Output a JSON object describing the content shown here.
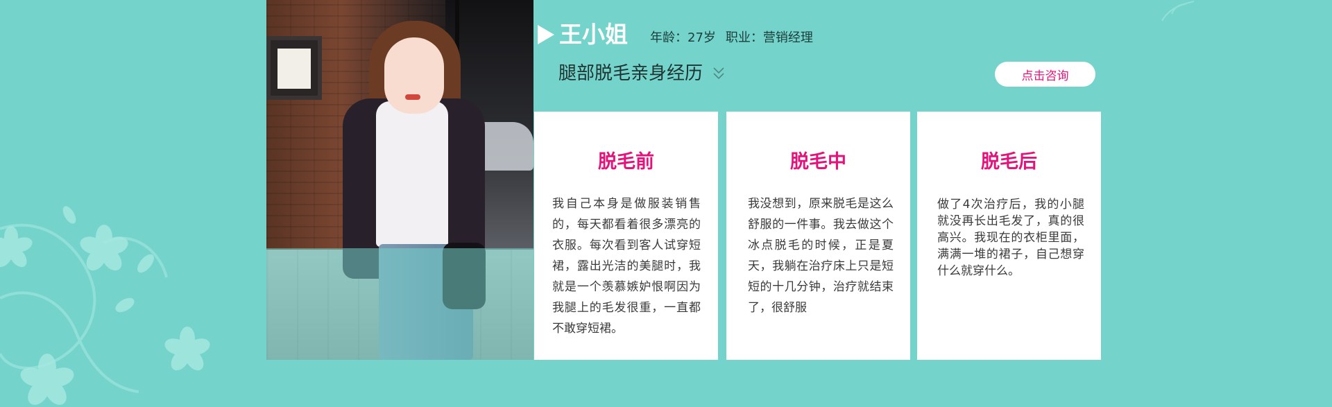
{
  "profile": {
    "name": "王小姐",
    "meta_age": "年龄：27岁",
    "meta_job": "职业：营销经理"
  },
  "section": {
    "heading": "腿部脱毛亲身经历"
  },
  "cta": {
    "consult_label": "点击咨询"
  },
  "stages": [
    {
      "title": "脱毛前",
      "text": "我自己本身是做服装销售的，每天都看着很多漂亮的衣服。每次看到客人试穿短裙，露出光洁的美腿时，我就是一个羡慕嫉妒恨啊因为我腿上的毛发很重，一直都不敢穿短裙。"
    },
    {
      "title": "脱毛中",
      "text": "我没想到，原来脱毛是这么舒服的一件事。我去做这个冰点脱毛的时候，正是夏天，我躺在治疗床上只是短短的十几分钟，治疗就结束了，很舒服"
    },
    {
      "title": "脱毛后",
      "text": "做了4次治疗后，我的小腿就没再长出毛发了，真的很高兴。我现在的衣柜里面，满满一堆的裙子，自己想穿什么就穿什么。"
    }
  ],
  "colors": {
    "background": "#74d4cc",
    "accent_pink": "#e4137c",
    "card_bg": "#ffffff"
  },
  "icons": {
    "header_marker": "triangle-right-icon",
    "heading_decoration": "double-chevron-down-icon"
  }
}
